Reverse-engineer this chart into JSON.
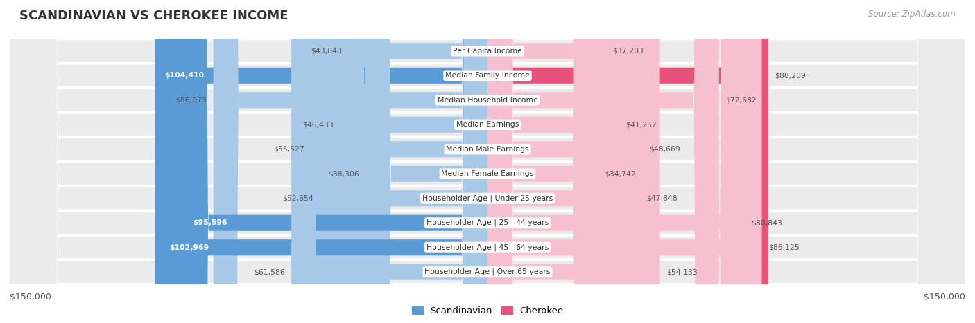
{
  "title": "SCANDINAVIAN VS CHEROKEE INCOME",
  "source": "Source: ZipAtlas.com",
  "categories": [
    "Per Capita Income",
    "Median Family Income",
    "Median Household Income",
    "Median Earnings",
    "Median Male Earnings",
    "Median Female Earnings",
    "Householder Age | Under 25 years",
    "Householder Age | 25 - 44 years",
    "Householder Age | 45 - 64 years",
    "Householder Age | Over 65 years"
  ],
  "scandinavian_values": [
    43848,
    104410,
    86073,
    46433,
    55527,
    38306,
    52654,
    95596,
    102969,
    61586
  ],
  "cherokee_values": [
    37203,
    88209,
    72682,
    41252,
    48669,
    34742,
    47848,
    80843,
    86125,
    54133
  ],
  "max_value": 150000,
  "scand_color_light": "#a8c8e8",
  "scand_color_dark": "#5b9bd5",
  "cherokee_color_light": "#f7c0d0",
  "cherokee_color_dark": "#e8527a",
  "over_threshold": 88000,
  "legend_scand_label": "Scandinavian",
  "legend_cherokee_label": "Cherokee",
  "xlabel_left": "$150,000",
  "xlabel_right": "$150,000",
  "background_color": "#ffffff",
  "row_bg_color": "#ebebeb",
  "label_bg_color": "#ffffff",
  "title_color": "#333333",
  "source_color": "#999999",
  "value_text_dark": "#555555",
  "value_text_light": "#ffffff"
}
